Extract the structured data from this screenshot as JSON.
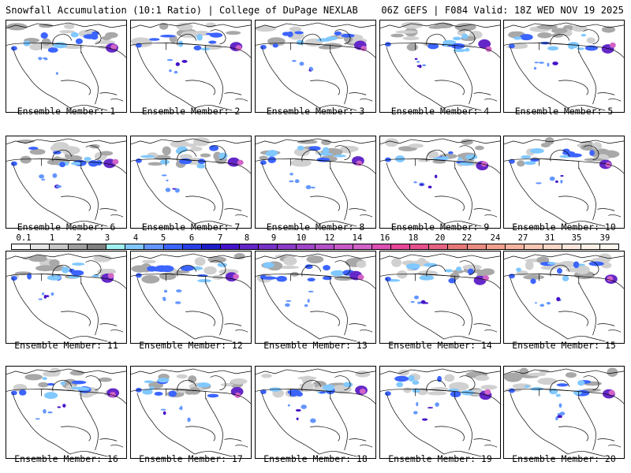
{
  "header": {
    "left": "Snowfall Accumulation (10:1 Ratio) | College of DuPage NEXLAB",
    "right": "06Z GEFS | F084 Valid: 18Z WED NOV 19 2025"
  },
  "panels": [
    {
      "label": "Ensemble Member: 1"
    },
    {
      "label": "Ensemble Member: 2"
    },
    {
      "label": "Ensemble Member: 3"
    },
    {
      "label": "Ensemble Member: 4"
    },
    {
      "label": "Ensemble Member: 5"
    },
    {
      "label": "Ensemble Member: 6"
    },
    {
      "label": "Ensemble Member: 7"
    },
    {
      "label": "Ensemble Member: 8"
    },
    {
      "label": "Ensemble Member: 9"
    },
    {
      "label": "Ensemble Member: 10"
    },
    {
      "label": "Ensemble Member: 11"
    },
    {
      "label": "Ensemble Member: 12"
    },
    {
      "label": "Ensemble Member: 13"
    },
    {
      "label": "Ensemble Member: 14"
    },
    {
      "label": "Ensemble Member: 15"
    },
    {
      "label": "Ensemble Member: 16"
    },
    {
      "label": "Ensemble Member: 17"
    },
    {
      "label": "Ensemble Member: 18"
    },
    {
      "label": "Ensemble Member: 19"
    },
    {
      "label": "Ensemble Member: 20"
    }
  ],
  "legend": {
    "ticks": [
      "0.1",
      "1",
      "2",
      "3",
      "4",
      "5",
      "6",
      "7",
      "8",
      "9",
      "10",
      "12",
      "14",
      "16",
      "18",
      "20",
      "22",
      "24",
      "27",
      "31",
      "35",
      "39"
    ],
    "colors": [
      "#ffffff",
      "#e6e6e6",
      "#c8c8c8",
      "#a0a0a0",
      "#808080",
      "#9ff0f0",
      "#80c8ff",
      "#6496ff",
      "#3c64ff",
      "#2840e6",
      "#1e1ec8",
      "#4614c8",
      "#6428c8",
      "#7832c8",
      "#8c3cc8",
      "#a046c8",
      "#b450c8",
      "#c85ac8",
      "#d264c8",
      "#dc50b4",
      "#e64696",
      "#e6508c",
      "#e66482",
      "#e67878",
      "#eb8c82",
      "#f0a08c",
      "#f5b4a0",
      "#f8c8b4",
      "#fad8c8",
      "#fce6dc",
      "#fff0e6",
      "#fff8f0"
    ]
  }
}
